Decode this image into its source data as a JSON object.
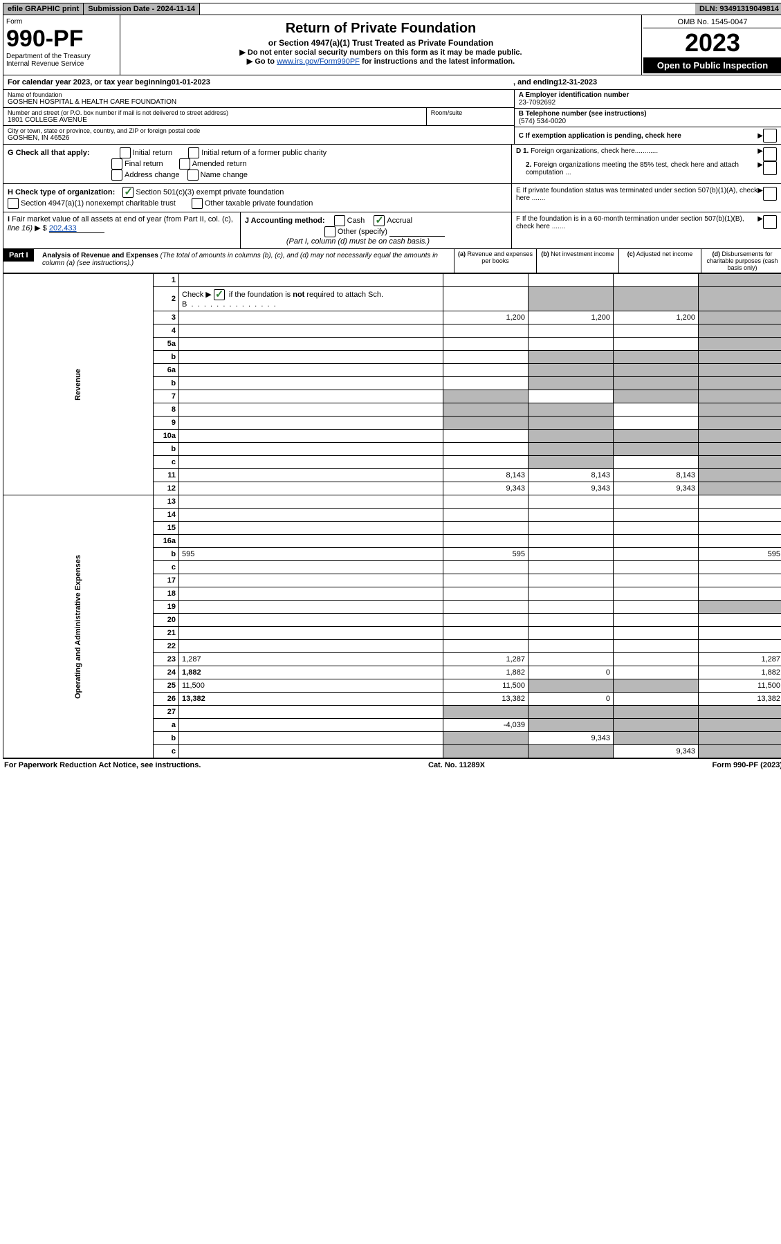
{
  "topbar": {
    "efile": "efile GRAPHIC print",
    "subdate_label": "Submission Date - ",
    "subdate": "2024-11-14",
    "dln_label": "DLN: ",
    "dln": "93491319049814"
  },
  "header": {
    "form_label": "Form",
    "form_num": "990-PF",
    "dept": "Department of the Treasury",
    "irs": "Internal Revenue Service",
    "title": "Return of Private Foundation",
    "subtitle": "or Section 4947(a)(1) Trust Treated as Private Foundation",
    "note1": "▶ Do not enter social security numbers on this form as it may be made public.",
    "note2_pre": "▶ Go to ",
    "note2_link": "www.irs.gov/Form990PF",
    "note2_post": " for instructions and the latest information.",
    "omb": "OMB No. 1545-0047",
    "year": "2023",
    "inspection": "Open to Public Inspection"
  },
  "calyear": {
    "pre": "For calendar year 2023, or tax year beginning ",
    "begin": "01-01-2023",
    "mid": ", and ending ",
    "end": "12-31-2023"
  },
  "org": {
    "name_label": "Name of foundation",
    "name": "GOSHEN HOSPITAL & HEALTH CARE FOUNDATION",
    "addr_label": "Number and street (or P.O. box number if mail is not delivered to street address)",
    "addr": "1801 COLLEGE AVENUE",
    "room_label": "Room/suite",
    "city_label": "City or town, state or province, country, and ZIP or foreign postal code",
    "city": "GOSHEN, IN  46526",
    "ein_label": "A Employer identification number",
    "ein": "23-7092692",
    "phone_label": "B Telephone number (see instructions)",
    "phone": "(574) 534-0020",
    "c_label": "C If exemption application is pending, check here"
  },
  "checks": {
    "G": "G Check all that apply:",
    "g_opts": [
      "Initial return",
      "Initial return of a former public charity",
      "Final return",
      "Amended return",
      "Address change",
      "Name change"
    ],
    "H": "H Check type of organization:",
    "h1": "Section 501(c)(3) exempt private foundation",
    "h2": "Section 4947(a)(1) nonexempt charitable trust",
    "h3": "Other taxable private foundation",
    "I": "I Fair market value of all assets at end of year (from Part II, col. (c), line 16) ▶ $",
    "I_val": "202,433",
    "J": "J Accounting method:",
    "j_cash": "Cash",
    "j_accrual": "Accrual",
    "j_other": "Other (specify)",
    "j_note": "(Part I, column (d) must be on cash basis.)",
    "D1": "D 1. Foreign organizations, check here............",
    "D2": "2. Foreign organizations meeting the 85% test, check here and attach computation ...",
    "E": "E  If private foundation status was terminated under section 507(b)(1)(A), check here .......",
    "F": "F  If the foundation is in a 60-month termination under section 507(b)(1)(B), check here .......",
    "arrow": "▶"
  },
  "part1": {
    "label": "Part I",
    "title": "Analysis of Revenue and Expenses",
    "title_note": " (The total of amounts in columns (b), (c), and (d) may not necessarily equal the amounts in column (a) (see instructions).)",
    "cols": {
      "a": "(a) Revenue and expenses per books",
      "b": "(b) Net investment income",
      "c": "(c) Adjusted net income",
      "d": "(d) Disbursements for charitable purposes (cash basis only)"
    }
  },
  "sections": {
    "revenue": "Revenue",
    "opex": "Operating and Administrative Expenses"
  },
  "rows": [
    {
      "n": "1",
      "d": "",
      "a": "",
      "b": "",
      "c": "",
      "d_shade": true
    },
    {
      "n": "2",
      "d": "",
      "a": "",
      "b": "",
      "c": "",
      "all_shade_bcd": true,
      "d_shade": true,
      "is_check_row": true
    },
    {
      "n": "3",
      "d": "",
      "a": "1,200",
      "b": "1,200",
      "c": "1,200",
      "d_shade": true
    },
    {
      "n": "4",
      "d": "",
      "a": "",
      "b": "",
      "c": "",
      "d_shade": true
    },
    {
      "n": "5a",
      "d": "",
      "a": "",
      "b": "",
      "c": "",
      "d_shade": true
    },
    {
      "n": "b",
      "d": "",
      "a": "",
      "b": "",
      "c": "",
      "bcd_shade": true
    },
    {
      "n": "6a",
      "d": "",
      "a": "",
      "b": "",
      "c": "",
      "bcd_shade": true
    },
    {
      "n": "b",
      "d": "",
      "a": "",
      "b": "",
      "c": "",
      "bcd_shade": true
    },
    {
      "n": "7",
      "d": "",
      "a": "",
      "b": "",
      "c": "",
      "a_shade": true,
      "cd_shade": true
    },
    {
      "n": "8",
      "d": "",
      "a": "",
      "b": "",
      "c": "",
      "ab_shade": true,
      "d_shade": true
    },
    {
      "n": "9",
      "d": "",
      "a": "",
      "b": "",
      "c": "",
      "ab_shade": true,
      "d_shade": true
    },
    {
      "n": "10a",
      "d": "",
      "a": "",
      "b": "",
      "c": "",
      "bcd_shade": true
    },
    {
      "n": "b",
      "d": "",
      "a": "",
      "b": "",
      "c": "",
      "bcd_shade": true
    },
    {
      "n": "c",
      "d": "",
      "a": "",
      "b": "",
      "c": "",
      "b_shade": true,
      "d_shade": true
    },
    {
      "n": "11",
      "d": "",
      "a": "8,143",
      "b": "8,143",
      "c": "8,143",
      "d_shade": true
    },
    {
      "n": "12",
      "d": "",
      "a": "9,343",
      "b": "9,343",
      "c": "9,343",
      "d_shade": true,
      "bold": true
    },
    {
      "n": "13",
      "d": "",
      "a": "",
      "b": "",
      "c": ""
    },
    {
      "n": "14",
      "d": "",
      "a": "",
      "b": "",
      "c": ""
    },
    {
      "n": "15",
      "d": "",
      "a": "",
      "b": "",
      "c": ""
    },
    {
      "n": "16a",
      "d": "",
      "a": "",
      "b": "",
      "c": ""
    },
    {
      "n": "b",
      "d": "595",
      "a": "595",
      "b": "",
      "c": ""
    },
    {
      "n": "c",
      "d": "",
      "a": "",
      "b": "",
      "c": ""
    },
    {
      "n": "17",
      "d": "",
      "a": "",
      "b": "",
      "c": ""
    },
    {
      "n": "18",
      "d": "",
      "a": "",
      "b": "",
      "c": ""
    },
    {
      "n": "19",
      "d": "",
      "a": "",
      "b": "",
      "c": "",
      "d_shade": true
    },
    {
      "n": "20",
      "d": "",
      "a": "",
      "b": "",
      "c": ""
    },
    {
      "n": "21",
      "d": "",
      "a": "",
      "b": "",
      "c": ""
    },
    {
      "n": "22",
      "d": "",
      "a": "",
      "b": "",
      "c": ""
    },
    {
      "n": "23",
      "d": "1,287",
      "a": "1,287",
      "b": "",
      "c": ""
    },
    {
      "n": "24",
      "d": "1,882",
      "a": "1,882",
      "b": "0",
      "c": "",
      "bold": true
    },
    {
      "n": "25",
      "d": "11,500",
      "a": "11,500",
      "b": "",
      "c": "",
      "bc_shade": true
    },
    {
      "n": "26",
      "d": "13,382",
      "a": "13,382",
      "b": "0",
      "c": "",
      "bold": true
    },
    {
      "n": "27",
      "d": "",
      "a": "",
      "b": "",
      "c": "",
      "all_shade": true
    },
    {
      "n": "a",
      "d": "",
      "a": "-4,039",
      "b": "",
      "c": "",
      "bcd_shade": true,
      "bold": true
    },
    {
      "n": "b",
      "d": "",
      "a": "",
      "b": "9,343",
      "c": "",
      "a_shade": true,
      "cd_shade": true,
      "bold": true
    },
    {
      "n": "c",
      "d": "",
      "a": "",
      "b": "",
      "c": "9,343",
      "ab_shade": true,
      "d_shade": true,
      "bold": true
    }
  ],
  "footer": {
    "left": "For Paperwork Reduction Act Notice, see instructions.",
    "center": "Cat. No. 11289X",
    "right": "Form 990-PF (2023)"
  }
}
